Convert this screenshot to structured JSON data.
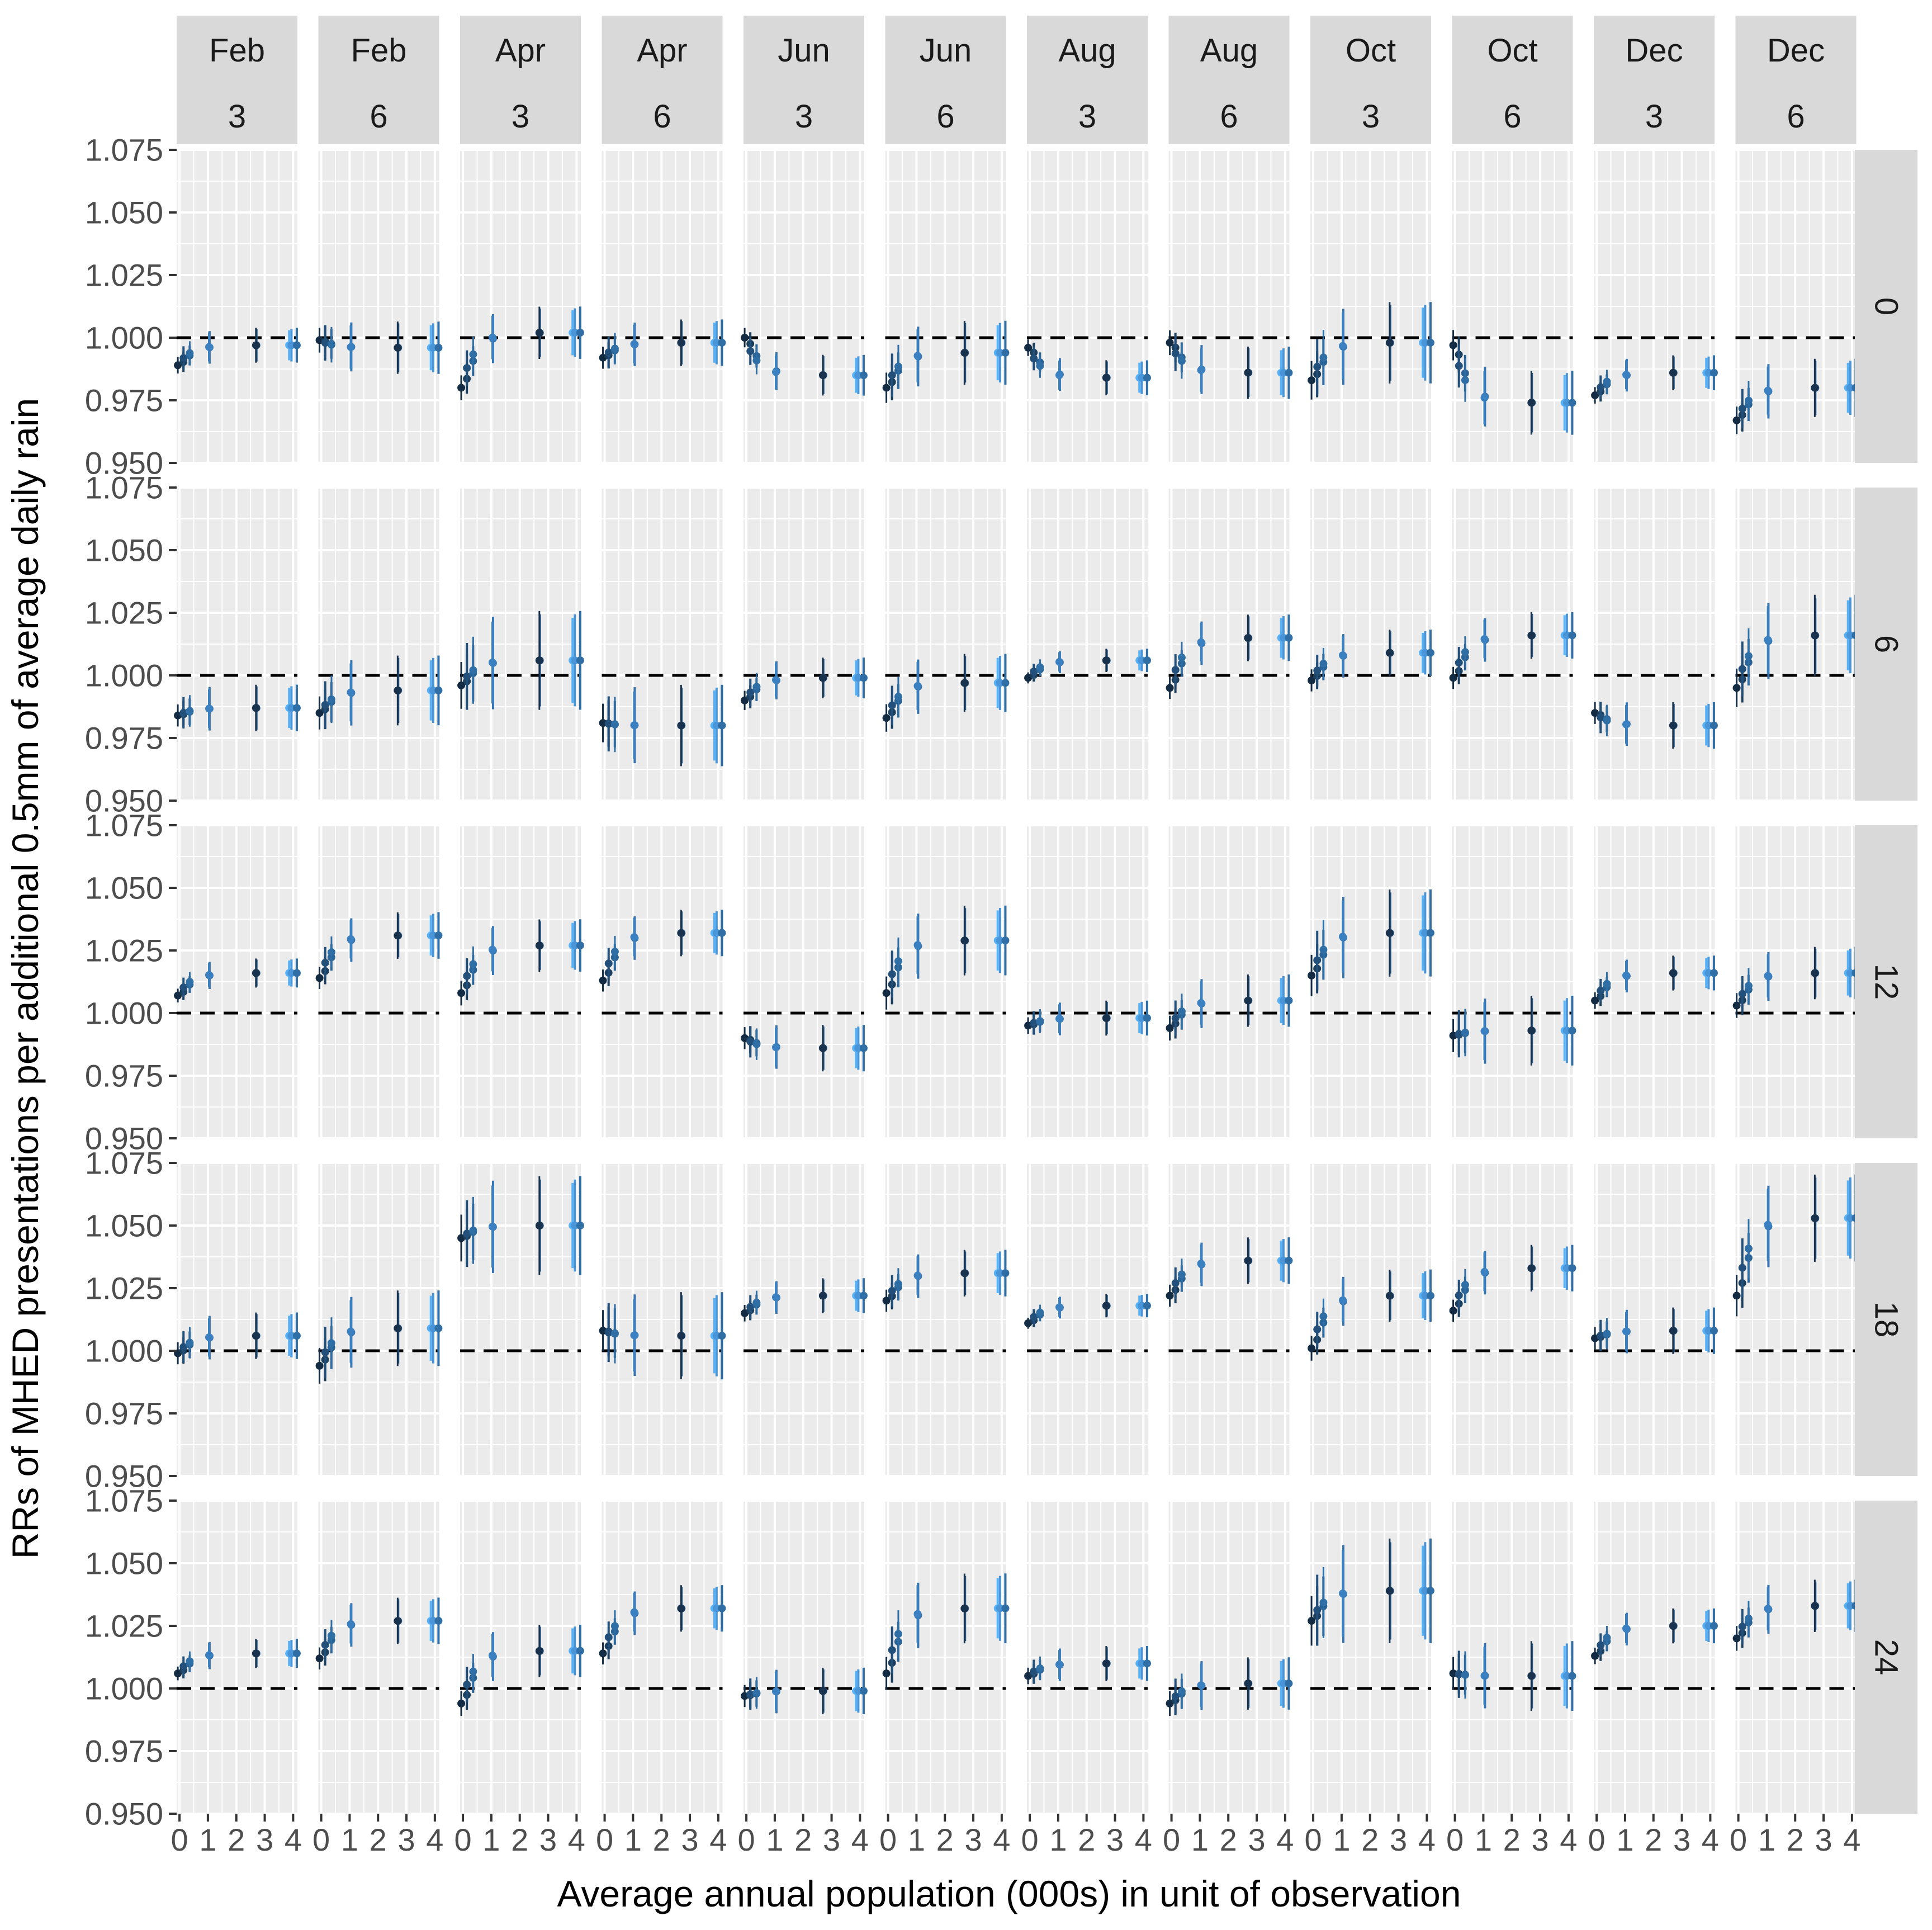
{
  "chart_data": {
    "type": "scatter",
    "subtype": "faceted point-range plot",
    "title": "",
    "xlabel": "Average annual population (000s) in unit of observation",
    "ylabel": "RRs of MHED presentations per additional 0.5mm of average daily rain",
    "xlim": [
      -0.1,
      4.15
    ],
    "ylim": [
      0.95,
      1.075
    ],
    "x_ticks": [
      0,
      1,
      2,
      3,
      4
    ],
    "x_tick_labels": [
      "0",
      "1",
      "2",
      "3",
      "4"
    ],
    "y_ticks": [
      0.95,
      0.975,
      1.0,
      1.025,
      1.05,
      1.075
    ],
    "y_tick_labels": [
      "0.950",
      "0.975",
      "1.000",
      "1.025",
      "1.050",
      "1.075"
    ],
    "reference_line": 1.0,
    "columns": [
      {
        "month": "Feb",
        "n": "3"
      },
      {
        "month": "Feb",
        "n": "6"
      },
      {
        "month": "Apr",
        "n": "3"
      },
      {
        "month": "Apr",
        "n": "6"
      },
      {
        "month": "Jun",
        "n": "3"
      },
      {
        "month": "Jun",
        "n": "6"
      },
      {
        "month": "Aug",
        "n": "3"
      },
      {
        "month": "Aug",
        "n": "6"
      },
      {
        "month": "Oct",
        "n": "3"
      },
      {
        "month": "Oct",
        "n": "6"
      },
      {
        "month": "Dec",
        "n": "3"
      },
      {
        "month": "Dec",
        "n": "6"
      }
    ],
    "rows": [
      "0",
      "6",
      "12",
      "18",
      "24"
    ],
    "point_x": [
      0.0,
      0.08,
      0.2,
      0.3,
      0.42,
      1.0,
      1.1,
      2.65,
      2.75,
      3.8,
      4.0,
      4.07
    ],
    "point_colors": [
      "#132b43",
      "#1d3f5e",
      "#22507a",
      "#2a6395",
      "#2f6fa6",
      "#3574b0",
      "#3b80c0",
      "#2b5f8f",
      "#19324d",
      "#56b1f7",
      "#4a95d8",
      "#2f6fa6"
    ],
    "series_centers": [
      [
        0.989,
        0.999,
        0.98,
        0.992,
        1.0,
        0.98,
        0.996,
        0.998,
        0.983,
        0.997,
        0.977,
        0.967
      ],
      [
        0.984,
        0.985,
        0.996,
        0.981,
        0.99,
        0.983,
        0.999,
        0.995,
        0.998,
        0.999,
        0.985,
        0.995
      ],
      [
        1.007,
        1.014,
        1.008,
        1.013,
        0.99,
        1.008,
        0.995,
        0.994,
        1.015,
        0.991,
        1.005,
        1.003
      ],
      [
        0.999,
        0.994,
        1.045,
        1.008,
        1.015,
        1.02,
        1.011,
        1.022,
        1.001,
        1.016,
        1.005,
        1.022
      ],
      [
        1.006,
        1.012,
        0.994,
        1.014,
        0.997,
        1.006,
        1.005,
        0.994,
        1.027,
        1.006,
        1.013,
        1.02
      ]
    ],
    "series_plateaus": [
      [
        0.997,
        0.996,
        1.002,
        0.998,
        0.985,
        0.994,
        0.984,
        0.986,
        0.998,
        0.974,
        0.986,
        0.98
      ],
      [
        0.987,
        0.994,
        1.006,
        0.98,
        0.999,
        0.997,
        1.006,
        1.015,
        1.009,
        1.016,
        0.98,
        1.016
      ],
      [
        1.016,
        1.031,
        1.027,
        1.032,
        0.986,
        1.029,
        0.998,
        1.005,
        1.032,
        0.993,
        1.016,
        1.016
      ],
      [
        1.006,
        1.009,
        1.05,
        1.006,
        1.022,
        1.031,
        1.018,
        1.036,
        1.022,
        1.033,
        1.008,
        1.053
      ],
      [
        1.014,
        1.027,
        1.015,
        1.032,
        0.999,
        1.032,
        1.01,
        1.002,
        1.039,
        1.005,
        1.025,
        1.033
      ]
    ],
    "ci_halfwidth": [
      [
        0.006,
        0.009,
        0.009,
        0.008,
        0.007,
        0.011,
        0.006,
        0.009,
        0.014,
        0.011,
        0.006,
        0.01
      ],
      [
        0.008,
        0.012,
        0.017,
        0.014,
        0.007,
        0.01,
        0.004,
        0.008,
        0.008,
        0.008,
        0.008,
        0.014
      ],
      [
        0.005,
        0.008,
        0.009,
        0.008,
        0.008,
        0.012,
        0.006,
        0.009,
        0.015,
        0.012,
        0.006,
        0.009
      ],
      [
        0.008,
        0.013,
        0.017,
        0.015,
        0.006,
        0.008,
        0.004,
        0.008,
        0.009,
        0.008,
        0.008,
        0.015
      ],
      [
        0.005,
        0.008,
        0.009,
        0.008,
        0.008,
        0.012,
        0.006,
        0.009,
        0.018,
        0.012,
        0.006,
        0.009
      ]
    ]
  }
}
